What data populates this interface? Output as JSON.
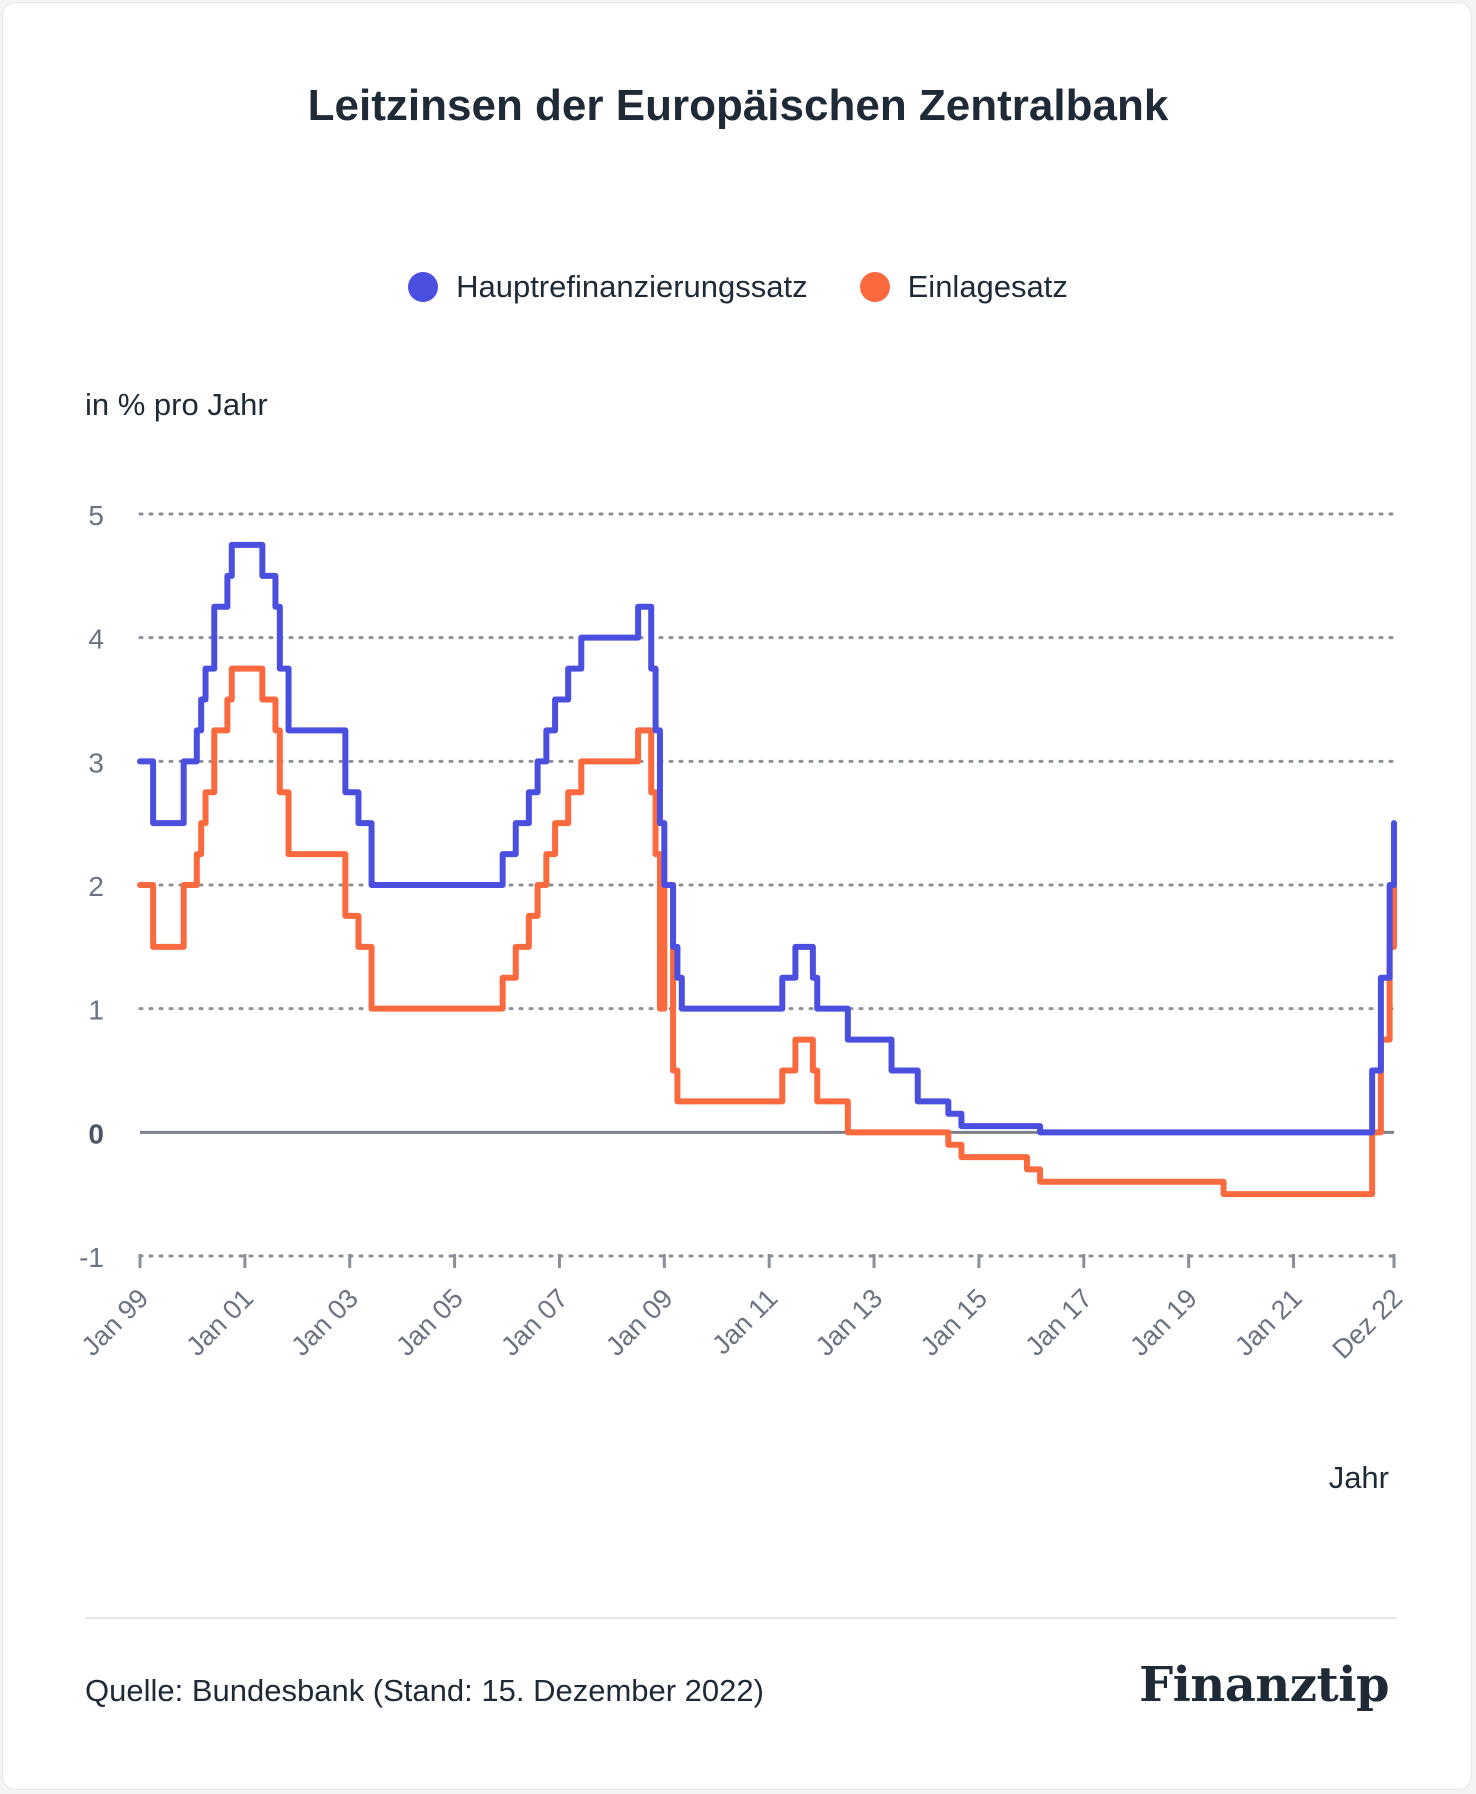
{
  "title": "Leitzinsen der Europäischen Zentralbank",
  "legend": [
    {
      "label": "Hauptrefinanzierungssatz",
      "color": "#4a4fe0"
    },
    {
      "label": "Einlagesatz",
      "color": "#fb6a3f"
    }
  ],
  "y_unit_label": "in % pro Jahr",
  "x_axis_label": "Jahr",
  "source": "Quelle: Bundesbank (Stand: 15. Dezember 2022)",
  "logo": "Finanztip",
  "chart_data": {
    "type": "line",
    "title": "Leitzinsen der Europäischen Zentralbank",
    "ylabel": "in % pro Jahr",
    "xlabel": "Jahr",
    "ylim": [
      -1,
      5
    ],
    "yticks": [
      "-1",
      "0",
      "1",
      "2",
      "3",
      "4",
      "5"
    ],
    "xlim": [
      "1999-01",
      "2022-12"
    ],
    "xticks": [
      {
        "date": "1999-01",
        "label": "Jan 99"
      },
      {
        "date": "2001-01",
        "label": "Jan 01"
      },
      {
        "date": "2003-01",
        "label": "Jan 03"
      },
      {
        "date": "2005-01",
        "label": "Jan 05"
      },
      {
        "date": "2007-01",
        "label": "Jan 07"
      },
      {
        "date": "2009-01",
        "label": "Jan 09"
      },
      {
        "date": "2011-01",
        "label": "Jan 11"
      },
      {
        "date": "2013-01",
        "label": "Jan 13"
      },
      {
        "date": "2015-01",
        "label": "Jan 15"
      },
      {
        "date": "2017-01",
        "label": "Jan 17"
      },
      {
        "date": "2019-01",
        "label": "Jan 19"
      },
      {
        "date": "2021-01",
        "label": "Jan 21"
      },
      {
        "date": "2022-12",
        "label": "Dez 22"
      }
    ],
    "grid": true,
    "legend_position": "top-center",
    "series": [
      {
        "name": "Hauptrefinanzierungssatz",
        "color": "#4a4fe0",
        "points": [
          [
            "1999-01",
            3.0
          ],
          [
            "1999-04",
            2.5
          ],
          [
            "1999-11",
            3.0
          ],
          [
            "2000-02",
            3.25
          ],
          [
            "2000-03",
            3.5
          ],
          [
            "2000-04",
            3.75
          ],
          [
            "2000-06",
            4.25
          ],
          [
            "2000-09",
            4.5
          ],
          [
            "2000-10",
            4.75
          ],
          [
            "2001-05",
            4.5
          ],
          [
            "2001-08",
            4.25
          ],
          [
            "2001-09",
            3.75
          ],
          [
            "2001-11",
            3.25
          ],
          [
            "2002-12",
            2.75
          ],
          [
            "2003-03",
            2.5
          ],
          [
            "2003-06",
            2.0
          ],
          [
            "2005-12",
            2.25
          ],
          [
            "2006-03",
            2.5
          ],
          [
            "2006-06",
            2.75
          ],
          [
            "2006-08",
            3.0
          ],
          [
            "2006-10",
            3.25
          ],
          [
            "2006-12",
            3.5
          ],
          [
            "2007-03",
            3.75
          ],
          [
            "2007-06",
            4.0
          ],
          [
            "2008-07",
            4.25
          ],
          [
            "2008-10",
            3.75
          ],
          [
            "2008-11",
            3.25
          ],
          [
            "2008-12",
            2.5
          ],
          [
            "2009-01",
            2.0
          ],
          [
            "2009-03",
            1.5
          ],
          [
            "2009-04",
            1.25
          ],
          [
            "2009-05",
            1.0
          ],
          [
            "2011-04",
            1.25
          ],
          [
            "2011-07",
            1.5
          ],
          [
            "2011-11",
            1.25
          ],
          [
            "2011-12",
            1.0
          ],
          [
            "2012-07",
            0.75
          ],
          [
            "2013-05",
            0.5
          ],
          [
            "2013-11",
            0.25
          ],
          [
            "2014-06",
            0.15
          ],
          [
            "2014-09",
            0.05
          ],
          [
            "2016-03",
            0.0
          ],
          [
            "2022-07",
            0.5
          ],
          [
            "2022-09",
            1.25
          ],
          [
            "2022-11",
            2.0
          ],
          [
            "2022-12",
            2.5
          ]
        ]
      },
      {
        "name": "Einlagesatz",
        "color": "#fb6a3f",
        "points": [
          [
            "1999-01",
            2.0
          ],
          [
            "1999-04",
            1.5
          ],
          [
            "1999-11",
            2.0
          ],
          [
            "2000-02",
            2.25
          ],
          [
            "2000-03",
            2.5
          ],
          [
            "2000-04",
            2.75
          ],
          [
            "2000-06",
            3.25
          ],
          [
            "2000-09",
            3.5
          ],
          [
            "2000-10",
            3.75
          ],
          [
            "2001-05",
            3.5
          ],
          [
            "2001-08",
            3.25
          ],
          [
            "2001-09",
            2.75
          ],
          [
            "2001-11",
            2.25
          ],
          [
            "2002-12",
            1.75
          ],
          [
            "2003-03",
            1.5
          ],
          [
            "2003-06",
            1.0
          ],
          [
            "2005-12",
            1.25
          ],
          [
            "2006-03",
            1.5
          ],
          [
            "2006-06",
            1.75
          ],
          [
            "2006-08",
            2.0
          ],
          [
            "2006-10",
            2.25
          ],
          [
            "2006-12",
            2.5
          ],
          [
            "2007-03",
            2.75
          ],
          [
            "2007-06",
            3.0
          ],
          [
            "2008-07",
            3.25
          ],
          [
            "2008-10",
            2.75
          ],
          [
            "2008-11",
            2.25
          ],
          [
            "2008-12",
            1.0
          ],
          [
            "2009-01",
            2.0
          ],
          [
            "2009-03",
            0.5
          ],
          [
            "2009-04",
            0.25
          ],
          [
            "2011-04",
            0.5
          ],
          [
            "2011-07",
            0.75
          ],
          [
            "2011-11",
            0.5
          ],
          [
            "2011-12",
            0.25
          ],
          [
            "2012-07",
            0.0
          ],
          [
            "2014-06",
            -0.1
          ],
          [
            "2014-09",
            -0.2
          ],
          [
            "2015-12",
            -0.3
          ],
          [
            "2016-03",
            -0.4
          ],
          [
            "2019-09",
            -0.5
          ],
          [
            "2022-07",
            0.0
          ],
          [
            "2022-09",
            0.75
          ],
          [
            "2022-11",
            1.5
          ],
          [
            "2022-12",
            2.0
          ]
        ]
      }
    ]
  }
}
